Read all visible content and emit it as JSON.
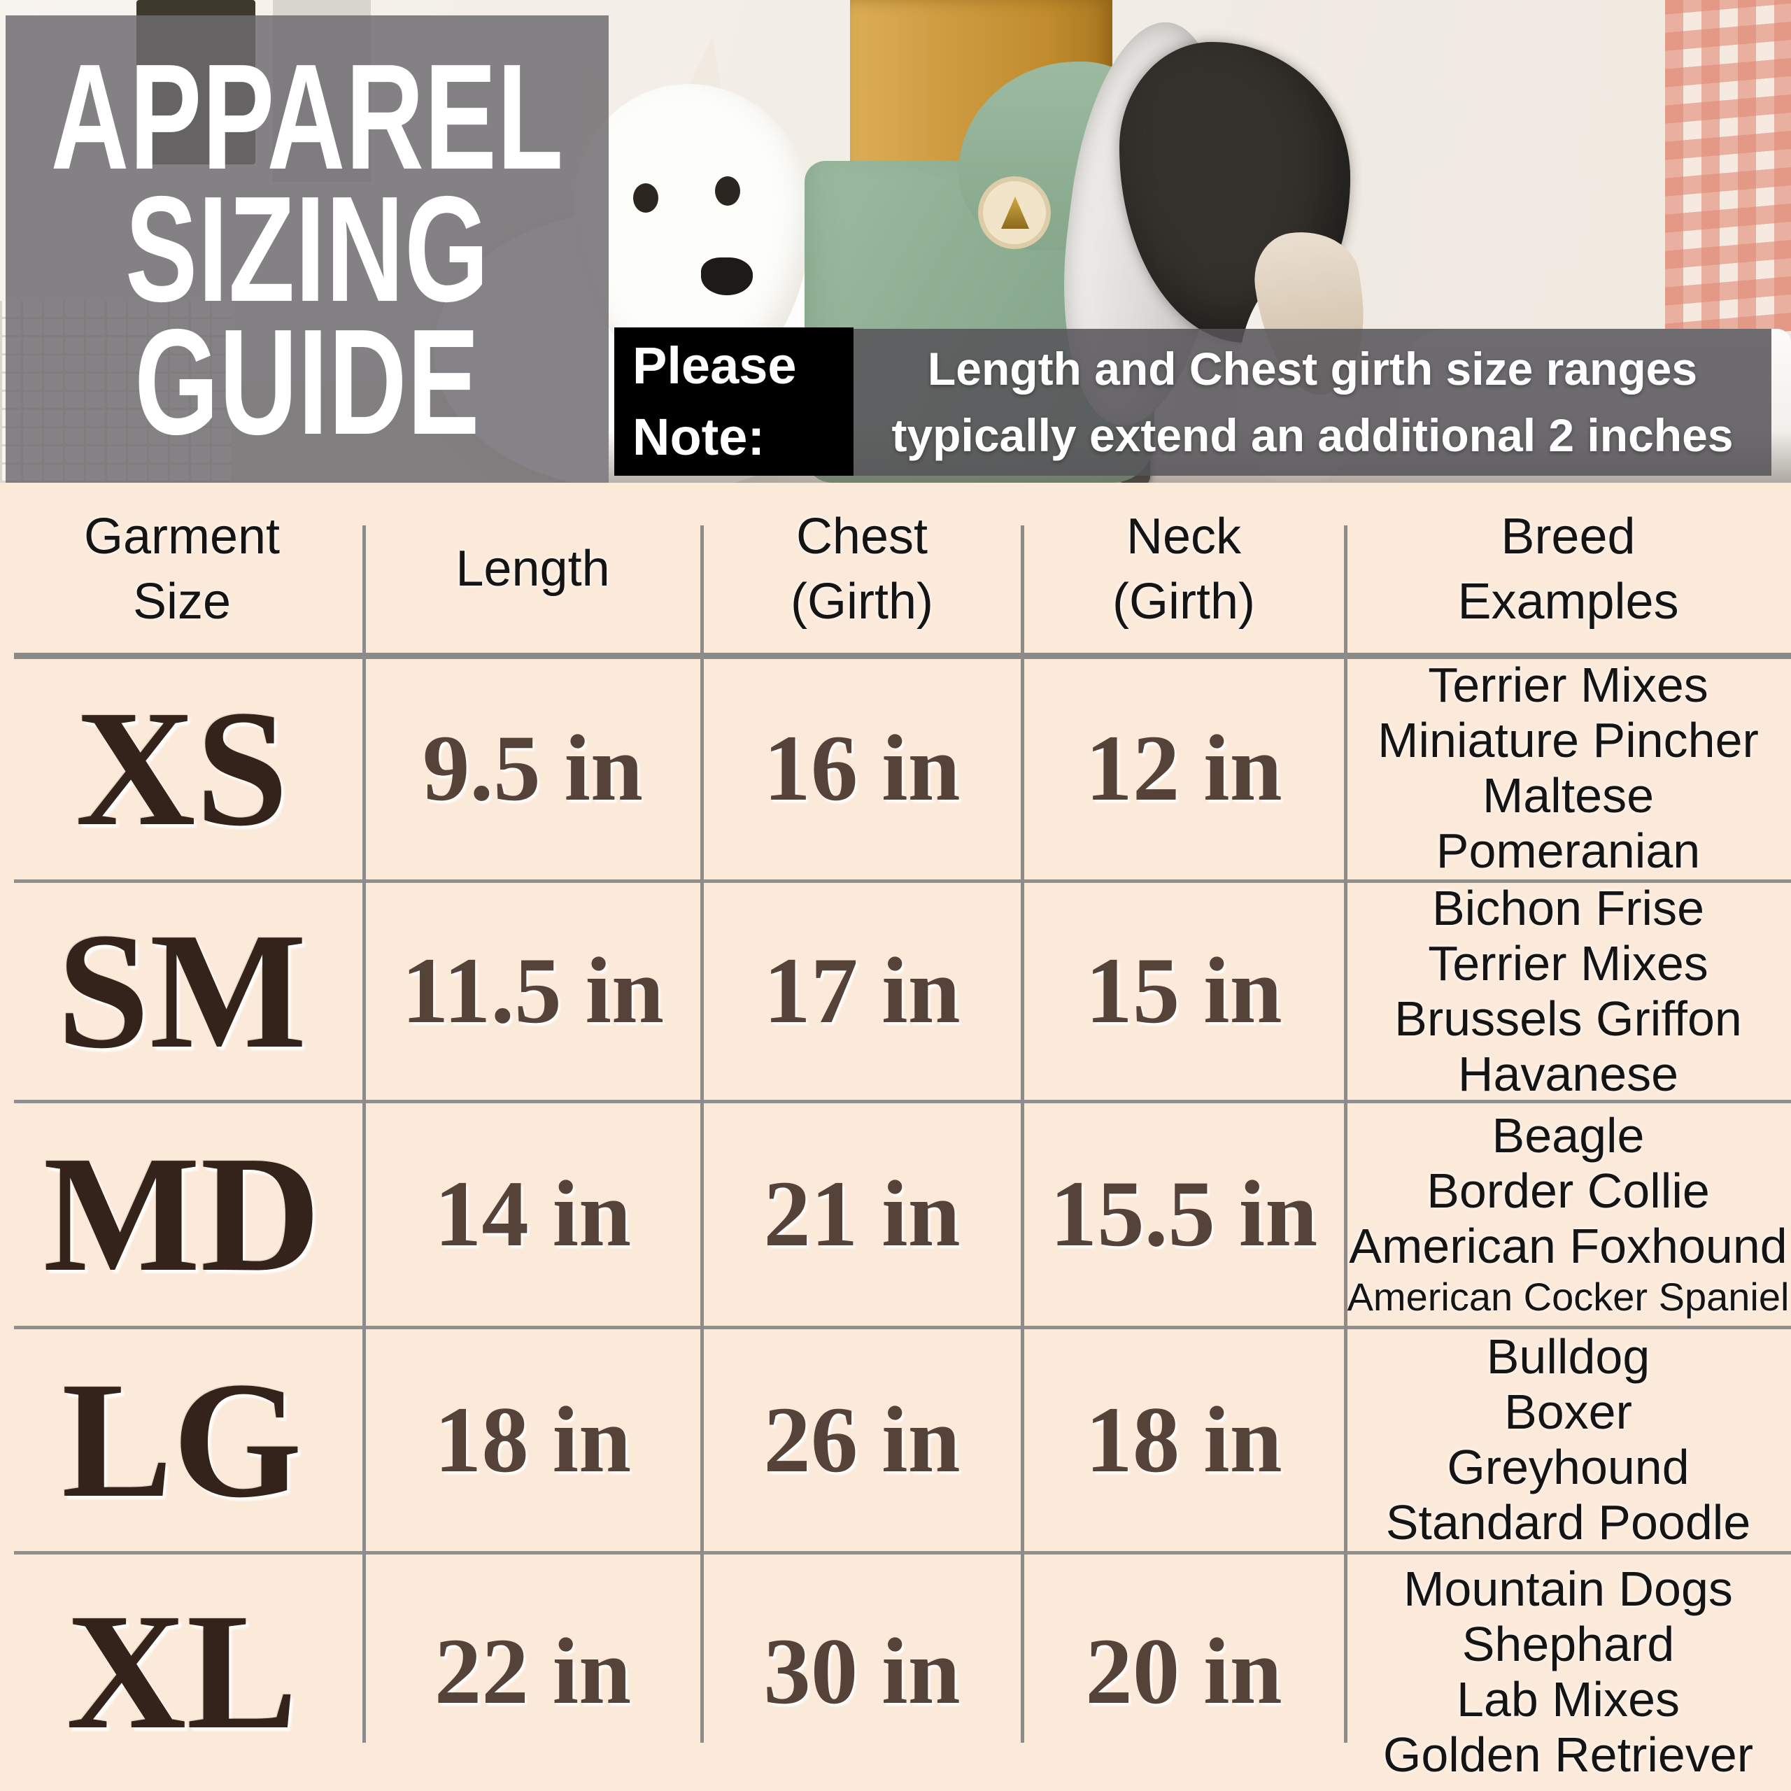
{
  "hero": {
    "title_lines": [
      "APPAREL",
      "SIZING",
      "GUIDE"
    ],
    "note": {
      "line1": "Please",
      "line2": "Note:"
    },
    "caption": {
      "line1": "Length and Chest girth size ranges",
      "line2": "typically extend an additional 2 inches"
    }
  },
  "table": {
    "headers": {
      "size": "Garment\nSize",
      "length": "Length",
      "chest": "Chest\n(Girth)",
      "neck": "Neck\n(Girth)",
      "breeds": "Breed\nExamples"
    },
    "rows": [
      {
        "size": "XS",
        "length": "9.5 in",
        "chest": "16 in",
        "neck": "12 in",
        "breeds": [
          "Terrier Mixes",
          "Miniature Pincher",
          "Maltese",
          "Pomeranian"
        ]
      },
      {
        "size": "SM",
        "length": "11.5 in",
        "chest": "17 in",
        "neck": "15 in",
        "breeds": [
          "Bichon Frise",
          "Terrier Mixes",
          "Brussels Griffon",
          "Havanese"
        ]
      },
      {
        "size": "MD",
        "length": "14 in",
        "chest": "21 in",
        "neck": "15.5 in",
        "breeds": [
          "Beagle",
          "Border Collie",
          "American Foxhound",
          "American Cocker Spaniel"
        ]
      },
      {
        "size": "LG",
        "length": "18 in",
        "chest": "26 in",
        "neck": "18 in",
        "breeds": [
          "Bulldog",
          "Boxer",
          "Greyhound",
          "Standard Poodle"
        ]
      },
      {
        "size": "XL",
        "length": "22 in",
        "chest": "30 in",
        "neck": "20 in",
        "breeds": [
          "Mountain Dogs",
          "Shephard",
          "Lab Mixes",
          "Golden Retriever"
        ]
      }
    ]
  },
  "colors": {
    "background_cream": "#fbe9d9",
    "size_label_brown": "#33231a",
    "measurement_brown": "#55433a",
    "breed_text_black": "#141414",
    "table_line_gray": "#8c8c8c",
    "overlay_gray": "#6e6b70",
    "note_box_black": "#000000",
    "coat_green": "#8aab8f",
    "wood_tan": "#c89238"
  }
}
